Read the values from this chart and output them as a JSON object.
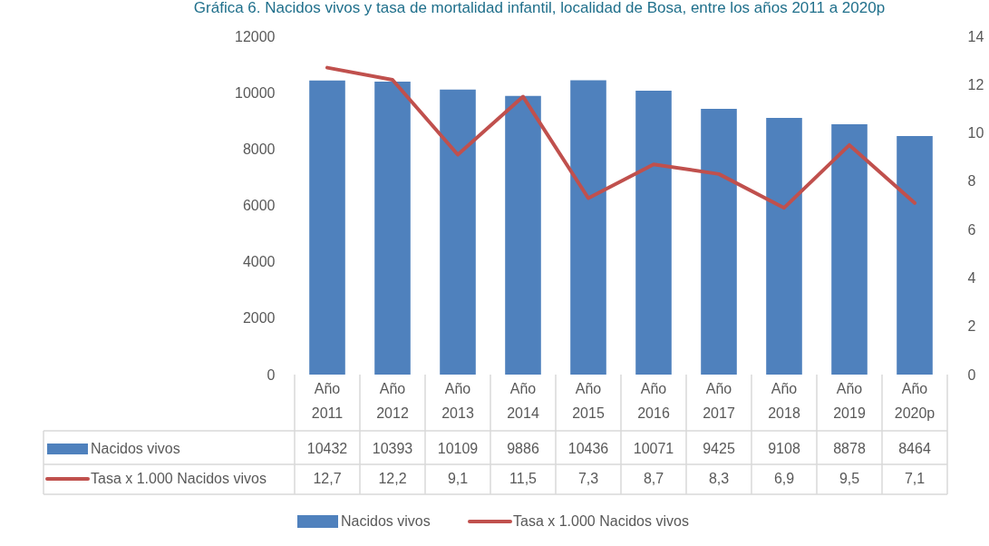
{
  "chart_data": {
    "type": "bar",
    "title": "Gráfica 6. Nacidos vivos y tasa de mortalidad infantil, localidad de Bosa, entre los años 2011 a 2020p",
    "categories": [
      "Año 2011",
      "Año 2012",
      "Año 2013",
      "Año 2014",
      "Año 2015",
      "Año 2016",
      "Año 2017",
      "Año 2018",
      "Año 2019",
      "Año 2020p"
    ],
    "series": [
      {
        "name": "Nacidos vivos",
        "color": "#4f81bd",
        "values": [
          10432,
          10393,
          10109,
          9886,
          10436,
          10071,
          9425,
          9108,
          8878,
          8464
        ],
        "value_labels": [
          "10432",
          "10393",
          "10109",
          "9886",
          "10436",
          "10071",
          "9425",
          "9108",
          "8878",
          "8464"
        ]
      },
      {
        "name": "Tasa x 1.000 Nacidos vivos",
        "type": "line",
        "axis": "y2",
        "color": "#c0504d",
        "values": [
          12.7,
          12.2,
          9.1,
          11.5,
          7.3,
          8.7,
          8.3,
          6.9,
          9.5,
          7.1
        ],
        "value_labels": [
          "12,7",
          "12,2",
          "9,1",
          "11,5",
          "7,3",
          "8,7",
          "8,3",
          "6,9",
          "9,5",
          "7,1"
        ]
      }
    ],
    "ylim": [
      0,
      12000
    ],
    "yticks": [
      0,
      2000,
      4000,
      6000,
      8000,
      10000,
      12000
    ],
    "y2lim": [
      0,
      14
    ],
    "y2ticks": [
      0,
      2,
      4,
      6,
      8,
      10,
      12,
      14
    ],
    "grid": false,
    "legend": "bottom"
  }
}
